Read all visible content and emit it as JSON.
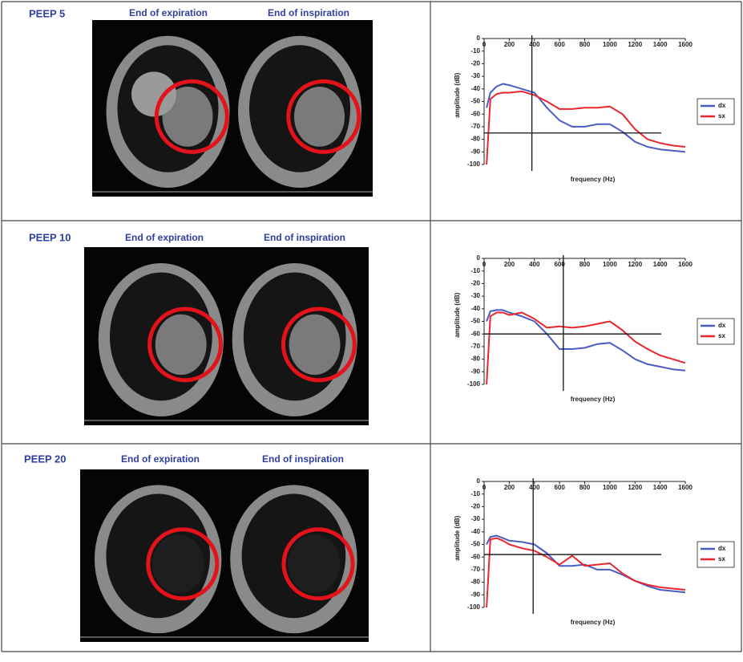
{
  "panels": [
    {
      "label": "PEEP 5",
      "expiration": "End of expiration",
      "inspiration": "End of inspiration"
    },
    {
      "label": "PEEP 10",
      "expiration": "End of expiration",
      "inspiration": "End of inspiration"
    },
    {
      "label": "PEEP 20",
      "expiration": "End of expiration",
      "inspiration": "End of inspiration"
    }
  ],
  "chart_data": [
    {
      "type": "line",
      "x_label": "frequency (Hz)",
      "y_label": "amplitude (dB)",
      "x": [
        20,
        50,
        100,
        150,
        200,
        300,
        400,
        500,
        600,
        700,
        800,
        900,
        1000,
        1100,
        1200,
        1300,
        1400,
        1500,
        1600
      ],
      "series": [
        {
          "name": "dx",
          "color": "#4a5bc4",
          "values": [
            -55,
            -43,
            -38,
            -36,
            -37,
            -40,
            -43,
            -55,
            -65,
            -70,
            -70,
            -68,
            -68,
            -74,
            -82,
            -86,
            -88,
            -89,
            -90
          ]
        },
        {
          "name": "sx",
          "color": "#e8262b",
          "values": [
            -100,
            -48,
            -44,
            -43,
            -43,
            -42,
            -45,
            -50,
            -56,
            -56,
            -55,
            -55,
            -54,
            -60,
            -72,
            -80,
            -83,
            -85,
            -86
          ]
        }
      ],
      "xlim": [
        0,
        1600
      ],
      "xticks": [
        0,
        200,
        400,
        600,
        800,
        1000,
        1200,
        1400,
        1600
      ],
      "ylim": [
        -100,
        0
      ],
      "yticks": [
        0,
        -10,
        -20,
        -30,
        -40,
        -50,
        -60,
        -70,
        -80,
        -90,
        -100
      ],
      "crosshair": {
        "x": 380,
        "y": -75
      },
      "legend": "right"
    },
    {
      "type": "line",
      "x_label": "frequency (Hz)",
      "y_label": "amplitude (dB)",
      "x": [
        20,
        50,
        100,
        150,
        200,
        300,
        400,
        500,
        600,
        700,
        800,
        900,
        1000,
        1100,
        1200,
        1300,
        1400,
        1500,
        1600
      ],
      "series": [
        {
          "name": "dx",
          "color": "#4a5bc4",
          "values": [
            -50,
            -42,
            -41,
            -41,
            -43,
            -46,
            -50,
            -60,
            -72,
            -72,
            -71,
            -68,
            -67,
            -73,
            -80,
            -84,
            -86,
            -88,
            -89
          ]
        },
        {
          "name": "sx",
          "color": "#e8262b",
          "values": [
            -100,
            -46,
            -43,
            -43,
            -45,
            -43,
            -48,
            -55,
            -54,
            -55,
            -54,
            -52,
            -50,
            -57,
            -66,
            -72,
            -77,
            -80,
            -83
          ]
        }
      ],
      "xlim": [
        0,
        1600
      ],
      "xticks": [
        0,
        200,
        400,
        600,
        800,
        1000,
        1200,
        1400,
        1600
      ],
      "ylim": [
        -100,
        0
      ],
      "yticks": [
        0,
        -10,
        -20,
        -30,
        -40,
        -50,
        -60,
        -70,
        -80,
        -90,
        -100
      ],
      "crosshair": {
        "x": 630,
        "y": -60
      },
      "legend": "right"
    },
    {
      "type": "line",
      "x_label": "frequency (Hz)",
      "y_label": "amplitude (dB)",
      "x": [
        20,
        50,
        100,
        150,
        200,
        300,
        400,
        500,
        600,
        700,
        800,
        900,
        1000,
        1100,
        1200,
        1300,
        1400,
        1500,
        1600
      ],
      "series": [
        {
          "name": "dx",
          "color": "#4a5bc4",
          "values": [
            -50,
            -44,
            -43,
            -45,
            -47,
            -48,
            -50,
            -57,
            -67,
            -67,
            -66,
            -70,
            -70,
            -74,
            -79,
            -83,
            -86,
            -87,
            -88
          ]
        },
        {
          "name": "sx",
          "color": "#e8262b",
          "values": [
            -100,
            -46,
            -45,
            -47,
            -50,
            -53,
            -55,
            -60,
            -66,
            -59,
            -67,
            -66,
            -65,
            -73,
            -79,
            -82,
            -84,
            -85,
            -86
          ]
        }
      ],
      "xlim": [
        0,
        1600
      ],
      "xticks": [
        0,
        200,
        400,
        600,
        800,
        1000,
        1200,
        1400,
        1600
      ],
      "ylim": [
        -100,
        0
      ],
      "yticks": [
        0,
        -10,
        -20,
        -30,
        -40,
        -50,
        -60,
        -70,
        -80,
        -90,
        -100
      ],
      "crosshair": {
        "x": 390,
        "y": -58
      },
      "legend": "right"
    }
  ]
}
